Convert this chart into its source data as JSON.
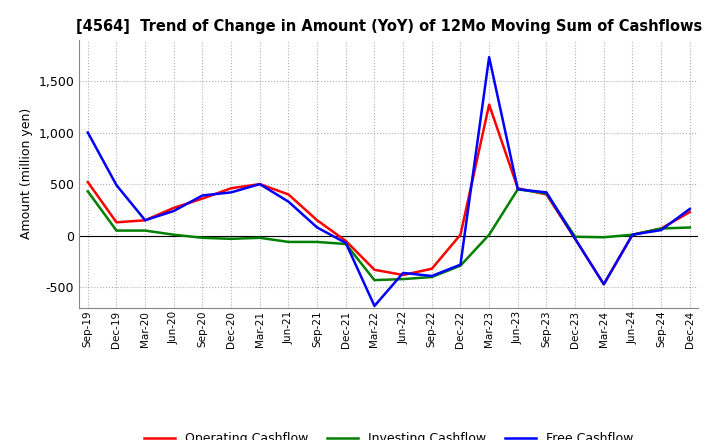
{
  "title": "[4564]  Trend of Change in Amount (YoY) of 12Mo Moving Sum of Cashflows",
  "ylabel": "Amount (million yen)",
  "x_labels": [
    "Sep-19",
    "Dec-19",
    "Mar-20",
    "Jun-20",
    "Sep-20",
    "Dec-20",
    "Mar-21",
    "Jun-21",
    "Sep-21",
    "Dec-21",
    "Mar-22",
    "Jun-22",
    "Sep-22",
    "Dec-22",
    "Mar-23",
    "Jun-23",
    "Sep-23",
    "Dec-23",
    "Mar-24",
    "Jun-24",
    "Sep-24",
    "Dec-24"
  ],
  "operating": [
    520,
    130,
    150,
    270,
    360,
    460,
    500,
    400,
    150,
    -50,
    -330,
    -380,
    -320,
    10,
    1270,
    460,
    400,
    -30,
    -470,
    10,
    70,
    230
  ],
  "investing": [
    430,
    50,
    50,
    10,
    -20,
    -30,
    -20,
    -60,
    -60,
    -80,
    -430,
    -420,
    -400,
    -290,
    10,
    450,
    410,
    -10,
    -15,
    10,
    70,
    80
  ],
  "free": [
    1000,
    490,
    150,
    240,
    390,
    420,
    500,
    330,
    80,
    -70,
    -680,
    -360,
    -390,
    -280,
    1730,
    450,
    420,
    -30,
    -470,
    10,
    55,
    260
  ],
  "operating_color": "#ff0000",
  "investing_color": "#008000",
  "free_color": "#0000ff",
  "ylim": [
    -700,
    1900
  ],
  "yticks": [
    -500,
    0,
    500,
    1000,
    1500
  ],
  "background_color": "#ffffff",
  "grid_color": "#b0b0b0",
  "line_width": 1.8
}
